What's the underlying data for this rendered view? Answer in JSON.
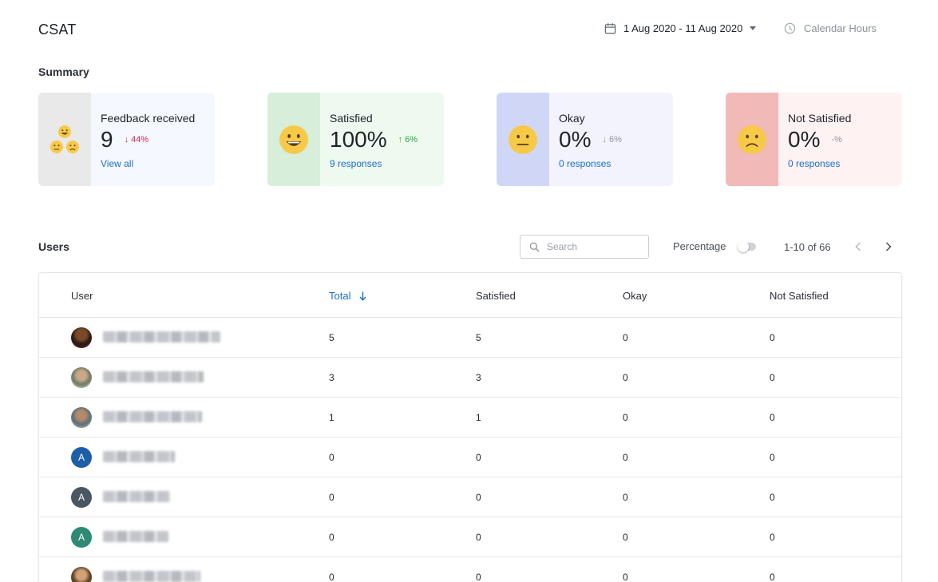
{
  "header": {
    "title": "CSAT",
    "date_range": "1 Aug 2020 - 11 Aug 2020",
    "hours_mode": "Calendar Hours"
  },
  "summary": {
    "title": "Summary",
    "cards": [
      {
        "label": "Feedback received",
        "value": "9",
        "delta": "44%",
        "delta_direction": "down",
        "link": "View all",
        "icon": "mixed-faces-icon"
      },
      {
        "label": "Satisfied",
        "value": "100%",
        "delta": "6%",
        "delta_direction": "up",
        "link": "9 responses",
        "icon": "happy-face-icon"
      },
      {
        "label": "Okay",
        "value": "0%",
        "delta": "6%",
        "delta_direction": "down",
        "link": "0 responses",
        "icon": "neutral-face-icon"
      },
      {
        "label": "Not Satisfied",
        "value": "0%",
        "delta": "-%",
        "delta_direction": "none",
        "link": "0 responses",
        "icon": "sad-face-icon"
      }
    ]
  },
  "users": {
    "title": "Users",
    "search_placeholder": "Search",
    "percentage_label": "Percentage",
    "percentage_enabled": false,
    "pagination": "1-10 of 66",
    "columns": [
      "User",
      "Total",
      "Satisfied",
      "Okay",
      "Not Satisfied"
    ],
    "sort_column": "Total",
    "rows": [
      {
        "avatar": "photo",
        "avatar_letter": "",
        "avatar_color": "#3a2418",
        "total": "5",
        "satisfied": "5",
        "okay": "0",
        "not_satisfied": "0"
      },
      {
        "avatar": "photo",
        "avatar_letter": "",
        "avatar_color": "#7d8a72",
        "total": "3",
        "satisfied": "3",
        "okay": "0",
        "not_satisfied": "0"
      },
      {
        "avatar": "photo",
        "avatar_letter": "",
        "avatar_color": "#6c7f8e",
        "total": "1",
        "satisfied": "1",
        "okay": "0",
        "not_satisfied": "0"
      },
      {
        "avatar": "letter",
        "avatar_letter": "A",
        "avatar_color": "#1d5ea8",
        "total": "0",
        "satisfied": "0",
        "okay": "0",
        "not_satisfied": "0"
      },
      {
        "avatar": "letter",
        "avatar_letter": "A",
        "avatar_color": "#4a5661",
        "total": "0",
        "satisfied": "0",
        "okay": "0",
        "not_satisfied": "0"
      },
      {
        "avatar": "letter",
        "avatar_letter": "A",
        "avatar_color": "#2f8a74",
        "total": "0",
        "satisfied": "0",
        "okay": "0",
        "not_satisfied": "0"
      },
      {
        "avatar": "photo",
        "avatar_letter": "",
        "avatar_color": "#8a6a3a",
        "total": "0",
        "satisfied": "0",
        "okay": "0",
        "not_satisfied": "0"
      }
    ]
  },
  "colors": {
    "accent": "#1a6fcc",
    "down": "#e0284a",
    "up": "#2aa64a",
    "emoji_yellow": "#f7c948"
  }
}
